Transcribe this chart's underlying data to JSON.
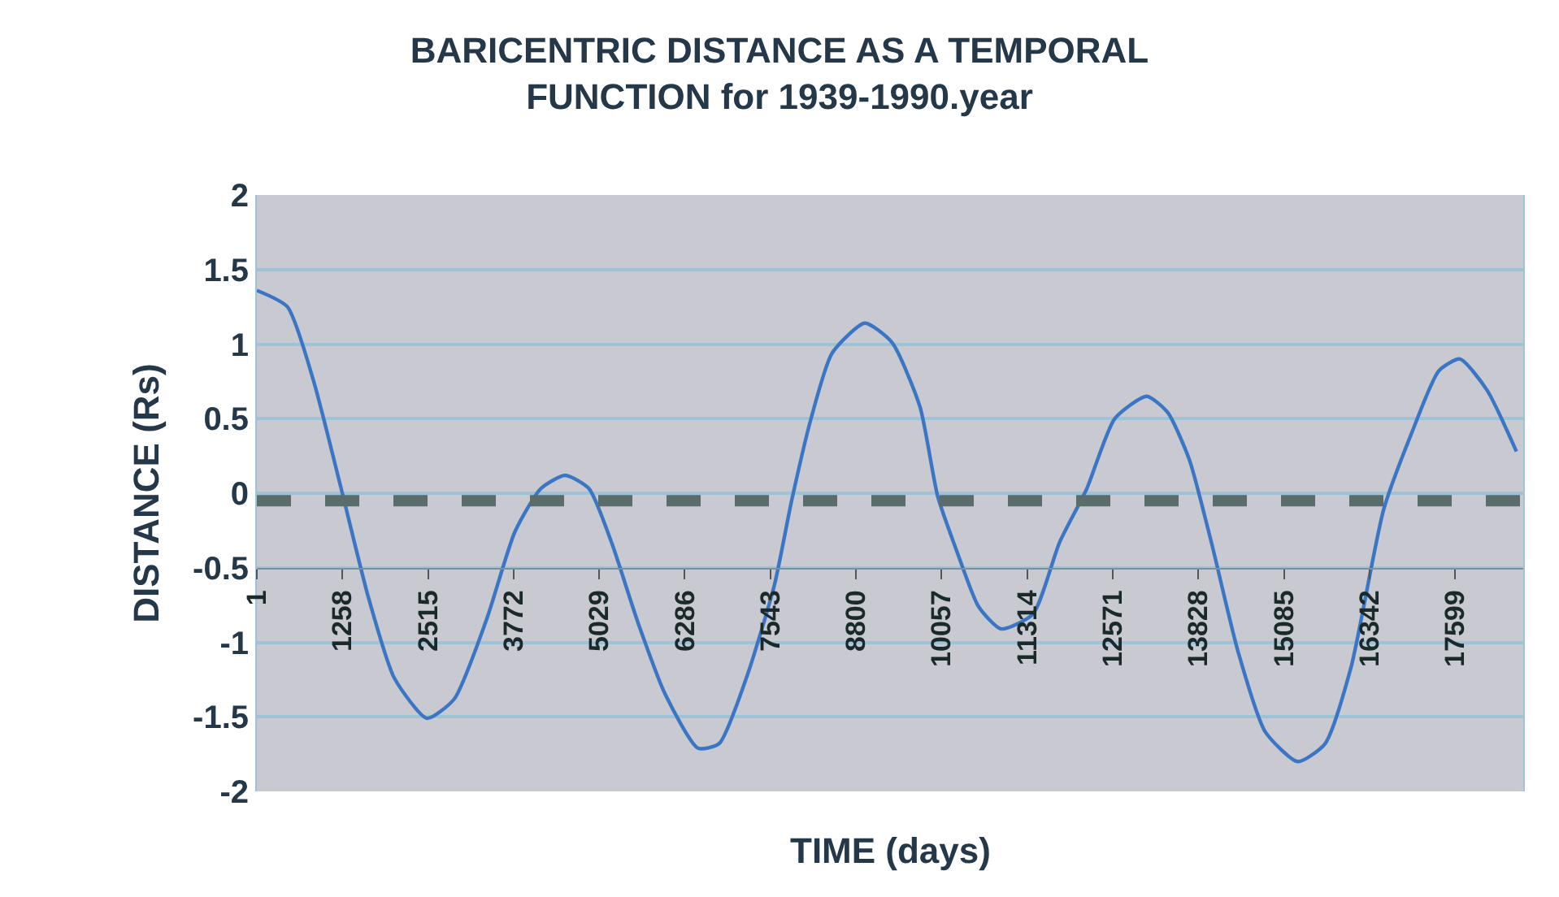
{
  "chart_data": {
    "type": "line",
    "title": "BARICENTRIC DISTANCE AS A TEMPORAL\nFUNCTION for 1939-1990.year",
    "xlabel": "TIME (days)",
    "ylabel": "DISTANCE (Rs)",
    "x": [
      1,
      450,
      830,
      1240,
      1640,
      2020,
      2500,
      2900,
      3380,
      3790,
      4170,
      4530,
      4880,
      5210,
      5600,
      6000,
      6480,
      6790,
      7190,
      7600,
      7860,
      8140,
      8450,
      8930,
      9330,
      9740,
      10000,
      10290,
      10600,
      10930,
      11400,
      11790,
      12190,
      12600,
      13070,
      13380,
      13700,
      14020,
      14410,
      14810,
      15290,
      15690,
      16070,
      16550,
      16950,
      17360,
      17670,
      18070,
      18500
    ],
    "series": [
      {
        "color": "#3a76c4",
        "values": [
          1.36,
          1.25,
          0.76,
          0.03,
          -0.7,
          -1.24,
          -1.51,
          -1.38,
          -0.84,
          -0.26,
          0.03,
          0.12,
          0.03,
          -0.33,
          -0.87,
          -1.35,
          -1.71,
          -1.68,
          -1.24,
          -0.62,
          -0.04,
          0.5,
          0.94,
          1.14,
          1.01,
          0.58,
          -0.02,
          -0.4,
          -0.76,
          -0.91,
          -0.81,
          -0.33,
          0.03,
          0.5,
          0.65,
          0.54,
          0.22,
          -0.33,
          -1.06,
          -1.6,
          -1.8,
          -1.68,
          -1.17,
          -0.11,
          0.39,
          0.82,
          0.9,
          0.69,
          0.28
        ]
      }
    ],
    "xlim": [
      1,
      18600
    ],
    "xticks": [
      1,
      1258,
      2515,
      3772,
      5029,
      6286,
      7543,
      8800,
      10057,
      11314,
      12571,
      13828,
      15085,
      16342,
      17599
    ],
    "ylim": [
      -2,
      2
    ],
    "yticks": [
      -2,
      -1.5,
      -1,
      -0.5,
      0,
      0.5,
      1,
      1.5,
      2
    ],
    "ref_lines": [
      {
        "axis": "y",
        "value": -0.05,
        "color": "#5b6d6a",
        "line_style": "dashed"
      }
    ],
    "grid": "y",
    "marker": "none",
    "line_style": "solid"
  }
}
